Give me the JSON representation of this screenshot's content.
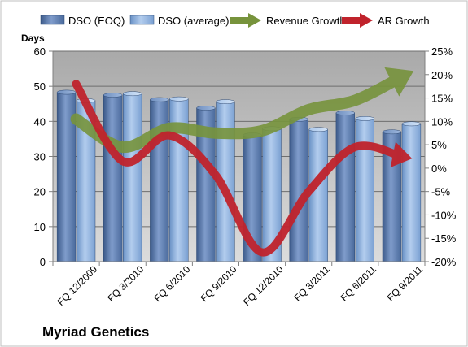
{
  "caption": "Myriad Genetics",
  "chart_data": {
    "type": "bar",
    "title": "",
    "categories": [
      "FQ 12/2009",
      "FQ 3/2010",
      "FQ 6/2010",
      "FQ 9/2010",
      "FQ 12/2010",
      "FQ 3/2011",
      "FQ 6/2011",
      "FQ 9/2011"
    ],
    "y_left": {
      "label": "Days",
      "range": [
        0,
        60
      ],
      "ticks": [
        "0",
        "10",
        "20",
        "30",
        "40",
        "50",
        "60"
      ]
    },
    "y_right": {
      "range": [
        -20,
        25
      ],
      "ticks": [
        "-20%",
        "-15%",
        "-10%",
        "-5%",
        "0%",
        "5%",
        "10%",
        "15%",
        "20%",
        "25%"
      ]
    },
    "grid": true,
    "legend_position": "top",
    "series": [
      {
        "name": "DSO (EOQ)",
        "type": "bar",
        "axis": "left",
        "color": "#5b7db1",
        "values": [
          48.3,
          47.5,
          46.2,
          43.8,
          36.1,
          40.6,
          42.4,
          37.0
        ]
      },
      {
        "name": "DSO (average)",
        "type": "bar",
        "axis": "left",
        "color": "#8db4e2",
        "values": [
          45.9,
          47.9,
          46.4,
          45.6,
          37.9,
          37.7,
          40.8,
          39.3
        ]
      },
      {
        "name": "Revenue Growth",
        "type": "line",
        "axis": "right",
        "color": "#77933c",
        "values": [
          10.5,
          4.5,
          8.5,
          7.5,
          8.0,
          12.5,
          14.5,
          19.5
        ]
      },
      {
        "name": "AR Growth",
        "type": "line",
        "axis": "right",
        "color": "#c0232c",
        "values": [
          18.0,
          1.5,
          7.0,
          -1.5,
          -18.0,
          -5.0,
          4.5,
          2.5
        ]
      }
    ]
  }
}
